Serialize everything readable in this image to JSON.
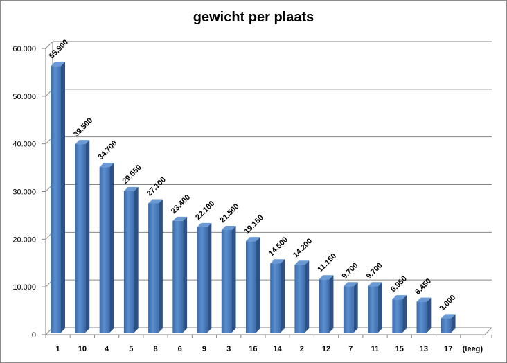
{
  "chart_data": {
    "type": "bar",
    "title": "gewicht per plaats",
    "xlabel": "",
    "ylabel": "",
    "ylim": [
      0,
      60000
    ],
    "yticks": [
      0,
      10000,
      20000,
      30000,
      40000,
      50000,
      60000
    ],
    "ytick_labels": [
      "0",
      "10.000",
      "20.000",
      "30.000",
      "40.000",
      "50.000",
      "60.000"
    ],
    "grid": true,
    "legend": "none",
    "bar_color": "#4a7ebb",
    "categories": [
      "1",
      "10",
      "4",
      "5",
      "8",
      "6",
      "9",
      "3",
      "16",
      "14",
      "2",
      "12",
      "7",
      "11",
      "15",
      "13",
      "17",
      "(leeg)"
    ],
    "values": [
      55900,
      39500,
      34700,
      29650,
      27100,
      23400,
      22100,
      21500,
      19150,
      14500,
      14200,
      11150,
      9700,
      9700,
      6950,
      6450,
      3000,
      null
    ],
    "data_labels": [
      "55.900",
      "39.500",
      "34.700",
      "29.650",
      "27.100",
      "23.400",
      "22.100",
      "21.500",
      "19.150",
      "14.500",
      "14.200",
      "11.150",
      "9.700",
      "9.700",
      "6.950",
      "6.450",
      "3.000",
      ""
    ]
  }
}
